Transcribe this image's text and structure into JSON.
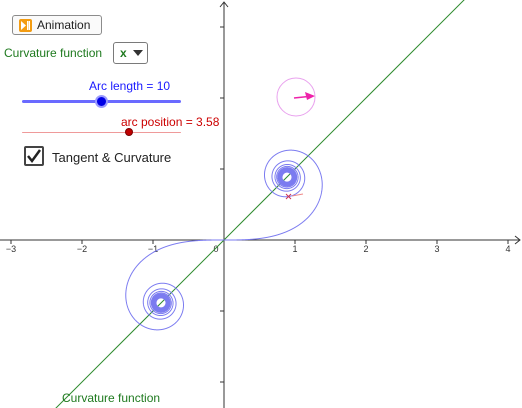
{
  "toolbar": {
    "animation_label": "Animation",
    "animation_icon": "play-pause-icon"
  },
  "controls": {
    "curvature_select_label": "Curvature function",
    "curvature_select_value": "x",
    "arc_length_label": "Arc length = 10",
    "arc_length_value": 10,
    "arc_position_label": "arc position = 3.58",
    "arc_position_value": 3.58,
    "checkbox_label": "Tangent & Curvature",
    "checkbox_checked": true
  },
  "graph": {
    "x_ticks": [
      "−3",
      "−2",
      "−1",
      "0",
      "1",
      "2",
      "3",
      "4"
    ],
    "curve_label": "Curvature function",
    "x_range": [
      -3,
      4
    ],
    "colors": {
      "curve": "#7b7bf0",
      "line": "#2e8b2e",
      "circle": "#e080e0",
      "arrow": "#ee22aa",
      "point": "#cc3355",
      "axes": "#333333",
      "slider_arc": "#0000e6",
      "slider_pos": "#c00000"
    }
  }
}
